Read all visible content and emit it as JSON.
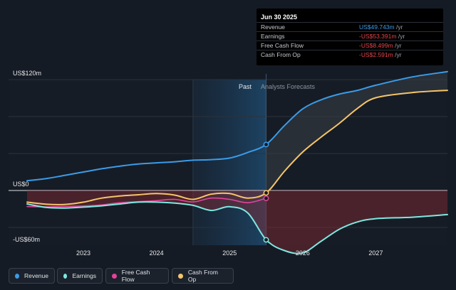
{
  "tooltip": {
    "date": "Jun 30 2025",
    "rows": [
      {
        "label": "Revenue",
        "value": "US$49.743m",
        "unit": "/yr",
        "color": "#3b9be8"
      },
      {
        "label": "Earnings",
        "value": "-US$53.391m",
        "unit": "/yr",
        "color": "#e8434a"
      },
      {
        "label": "Free Cash Flow",
        "value": "-US$8.499m",
        "unit": "/yr",
        "color": "#e8434a"
      },
      {
        "label": "Cash From Op",
        "value": "-US$2.591m",
        "unit": "/yr",
        "color": "#e8434a"
      }
    ]
  },
  "legend": [
    {
      "label": "Revenue",
      "color": "#3b9be8"
    },
    {
      "label": "Earnings",
      "color": "#7de8e0"
    },
    {
      "label": "Free Cash Flow",
      "color": "#e0449a"
    },
    {
      "label": "Cash From Op",
      "color": "#f5c56a"
    }
  ],
  "chart_data": {
    "type": "line",
    "y_ticks": [
      "US$120m",
      "US$0",
      "-US$60m"
    ],
    "x_ticks": [
      "2023",
      "2024",
      "2025",
      "2026",
      "2027"
    ],
    "region_labels": {
      "past": "Past",
      "forecast": "Analysts Forecasts"
    },
    "ylim": [
      -60,
      120
    ],
    "xlim": [
      2022.23,
      2027.98
    ],
    "divider_x": 2025.5,
    "shade_start_x": 2024.5,
    "series": [
      {
        "name": "Revenue",
        "color": "#3b9be8",
        "points": [
          [
            2022.23,
            10.6
          ],
          [
            2022.5,
            13
          ],
          [
            2022.75,
            16.5
          ],
          [
            2023.0,
            20
          ],
          [
            2023.25,
            23.5
          ],
          [
            2023.5,
            26.4
          ],
          [
            2023.75,
            28.7
          ],
          [
            2024.0,
            29.9
          ],
          [
            2024.25,
            31.1
          ],
          [
            2024.5,
            32.8
          ],
          [
            2024.75,
            33.4
          ],
          [
            2025.0,
            35.1
          ],
          [
            2025.25,
            41.2
          ],
          [
            2025.5,
            49.743
          ],
          [
            2025.75,
            70.2
          ],
          [
            2026.0,
            88.3
          ],
          [
            2026.25,
            98.1
          ],
          [
            2026.5,
            104.3
          ],
          [
            2026.75,
            108.4
          ],
          [
            2027.0,
            113.9
          ],
          [
            2027.5,
            122.9
          ],
          [
            2027.98,
            128.6
          ]
        ]
      },
      {
        "name": "Earnings",
        "color": "#7de8e0",
        "points": [
          [
            2022.23,
            -14.6
          ],
          [
            2022.5,
            -18.4
          ],
          [
            2022.75,
            -19.0
          ],
          [
            2023.0,
            -18.0
          ],
          [
            2023.25,
            -16.6
          ],
          [
            2023.5,
            -14.6
          ],
          [
            2023.75,
            -12.6
          ],
          [
            2024.0,
            -12.6
          ],
          [
            2024.25,
            -13.7
          ],
          [
            2024.5,
            -16.1
          ],
          [
            2024.75,
            -21.6
          ],
          [
            2025.0,
            -17.5
          ],
          [
            2025.25,
            -24.4
          ],
          [
            2025.5,
            -53.391
          ],
          [
            2025.75,
            -65
          ],
          [
            2026.0,
            -67.5
          ],
          [
            2026.25,
            -55
          ],
          [
            2026.5,
            -42
          ],
          [
            2026.75,
            -34
          ],
          [
            2027.0,
            -30.5
          ],
          [
            2027.5,
            -28.9
          ],
          [
            2027.98,
            -26.1
          ]
        ]
      },
      {
        "name": "Free Cash Flow",
        "color": "#e0449a",
        "points": [
          [
            2022.23,
            -17.4
          ],
          [
            2022.5,
            -17.8
          ],
          [
            2022.75,
            -17.2
          ],
          [
            2023.0,
            -16.8
          ],
          [
            2023.25,
            -15.6
          ],
          [
            2023.5,
            -13.2
          ],
          [
            2023.75,
            -12.1
          ],
          [
            2024.0,
            -11.0
          ],
          [
            2024.25,
            -9.6
          ],
          [
            2024.5,
            -12.4
          ],
          [
            2024.75,
            -8.2
          ],
          [
            2025.0,
            -9.6
          ],
          [
            2025.25,
            -13.2
          ],
          [
            2025.5,
            -8.499
          ]
        ]
      },
      {
        "name": "Cash From Op",
        "color": "#f5c56a",
        "points": [
          [
            2022.23,
            -12.6
          ],
          [
            2022.5,
            -14.9
          ],
          [
            2022.75,
            -15.1
          ],
          [
            2023.0,
            -12.6
          ],
          [
            2023.25,
            -8.2
          ],
          [
            2023.5,
            -6.0
          ],
          [
            2023.75,
            -4.6
          ],
          [
            2024.0,
            -3.3
          ],
          [
            2024.25,
            -5.0
          ],
          [
            2024.5,
            -9.6
          ],
          [
            2024.75,
            -3.9
          ],
          [
            2025.0,
            -3.3
          ],
          [
            2025.25,
            -8.2
          ],
          [
            2025.5,
            -2.591
          ],
          [
            2025.75,
            20.8
          ],
          [
            2026.0,
            41.6
          ],
          [
            2026.25,
            57.7
          ],
          [
            2026.5,
            72.6
          ],
          [
            2026.75,
            88.9
          ],
          [
            2027.0,
            100.4
          ],
          [
            2027.5,
            106.0
          ],
          [
            2027.98,
            108.4
          ]
        ]
      }
    ]
  }
}
